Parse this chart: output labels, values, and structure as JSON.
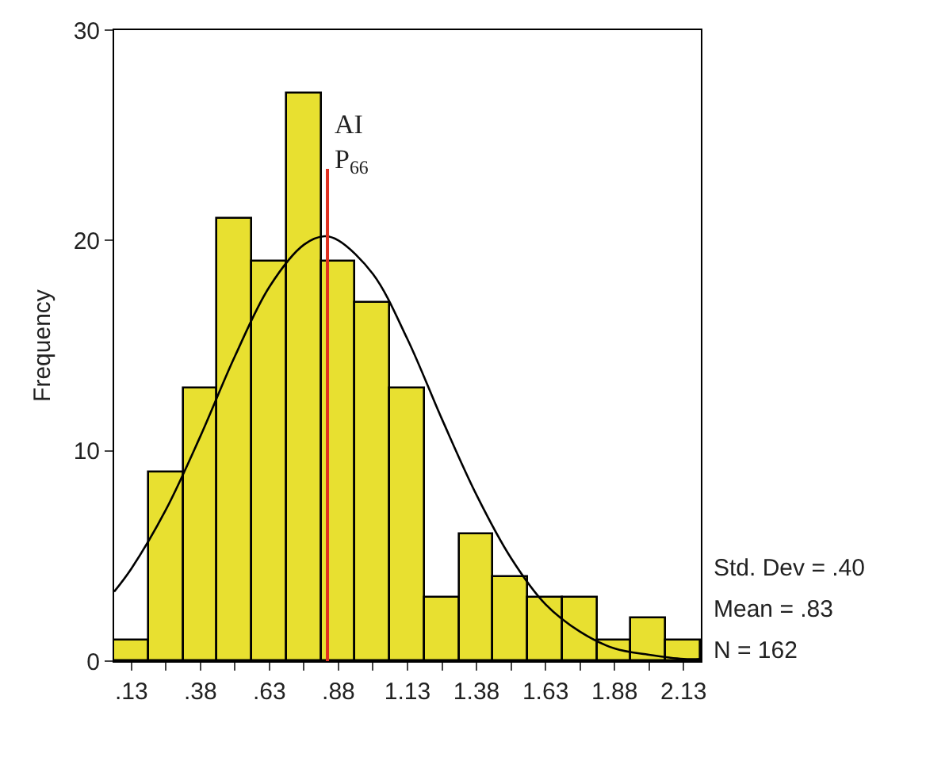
{
  "chart_data": {
    "type": "histogram",
    "ylabel": "Frequency",
    "bins": [
      0.0675,
      0.1925,
      0.3175,
      0.4425,
      0.5675,
      0.6925,
      0.8175,
      0.9425,
      1.0675,
      1.1925,
      1.3175,
      1.4425,
      1.5675,
      1.6925,
      1.8175,
      1.9425,
      2.0675,
      2.1925
    ],
    "values": [
      1,
      9,
      13,
      21,
      19,
      27,
      19,
      17,
      13,
      3,
      6,
      4,
      3,
      3,
      1,
      2,
      1
    ],
    "color": "#e8e030",
    "series": [
      {
        "type": "line",
        "color": "#000000",
        "x": [
          0.0675,
          0.13,
          0.255,
          0.38,
          0.505,
          0.63,
          0.755,
          0.83,
          0.88,
          1.005,
          1.13,
          1.255,
          1.38,
          1.505,
          1.63,
          1.755,
          1.88,
          2.005,
          2.13,
          2.1925
        ],
        "values": [
          3.3,
          4.4,
          7.2,
          10.7,
          14.5,
          17.8,
          19.8,
          20.2,
          20.0,
          18.4,
          15.3,
          11.5,
          7.9,
          4.9,
          2.7,
          1.4,
          0.6,
          0.3,
          0.1,
          0.1
        ]
      }
    ],
    "xlim": [
      0.0675,
      2.1925
    ],
    "xticks": [
      {
        "value": 0.13,
        "label": ".13"
      },
      {
        "value": 0.255,
        "label": null
      },
      {
        "value": 0.38,
        "label": ".38"
      },
      {
        "value": 0.505,
        "label": null
      },
      {
        "value": 0.63,
        "label": ".63"
      },
      {
        "value": 0.755,
        "label": null
      },
      {
        "value": 0.88,
        "label": ".88"
      },
      {
        "value": 1.005,
        "label": null
      },
      {
        "value": 1.13,
        "label": "1.13"
      },
      {
        "value": 1.255,
        "label": null
      },
      {
        "value": 1.38,
        "label": "1.38"
      },
      {
        "value": 1.505,
        "label": null
      },
      {
        "value": 1.63,
        "label": "1.63"
      },
      {
        "value": 1.755,
        "label": null
      },
      {
        "value": 1.88,
        "label": "1.88"
      },
      {
        "value": 2.005,
        "label": null
      },
      {
        "value": 2.13,
        "label": "2.13"
      }
    ],
    "ylim": [
      0,
      30
    ],
    "yticks": [
      0,
      10,
      20,
      30
    ],
    "ref_lines": [
      {
        "axis": "x",
        "value": 0.84,
        "label": "AI\nP$_{66}$",
        "color": "#e03020"
      }
    ],
    "annotations": [
      "Std. Dev = .40",
      "Mean = .83",
      "N = 162"
    ]
  }
}
